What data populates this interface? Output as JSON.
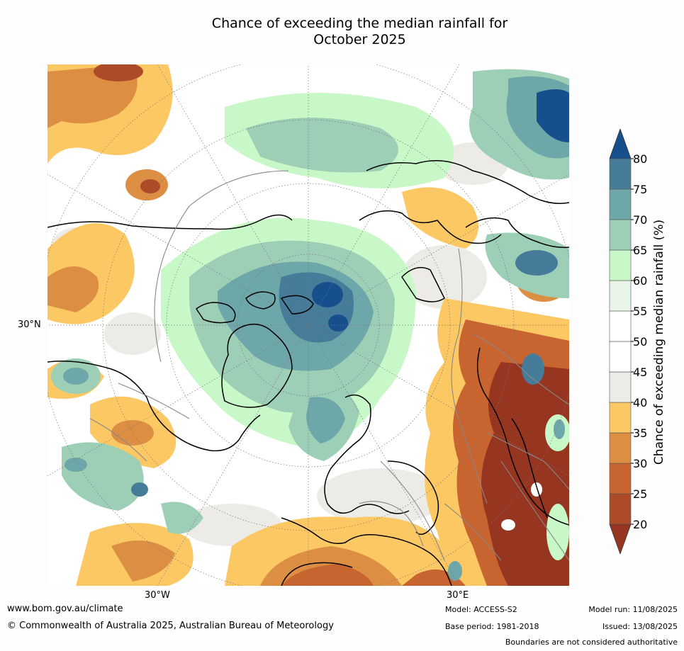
{
  "title_line1": "Chance of exceeding the median rainfall for",
  "title_line2": "October 2025",
  "map": {
    "latitude_label": "30°N",
    "longitude_labels": [
      "30°W",
      "30°E"
    ]
  },
  "colorbar": {
    "label": "Chance of exceeding median rainfall (%)",
    "ticks": [
      "20",
      "25",
      "30",
      "35",
      "40",
      "45",
      "50",
      "55",
      "60",
      "65",
      "70",
      "75",
      "80"
    ],
    "colors": [
      "#963520",
      "#ad4a28",
      "#c8642f",
      "#dc8e43",
      "#fbc864",
      "#ecebe6",
      "#ffffff",
      "#ffffff",
      "#e9f5e9",
      "#c9f8c8",
      "#9ccfb6",
      "#6ea7a9",
      "#467b99",
      "#174f8c"
    ]
  },
  "footer": {
    "website": "www.bom.gov.au/climate",
    "copyright": "© Commonwealth of Australia 2025, Australian Bureau of Meteorology",
    "model": "Model: ACCESS-S2",
    "base_period": "Base period: 1981-2018",
    "model_run": "Model run: 11/08/2025",
    "issued": "Issued: 13/08/2025",
    "disclaimer": "Boundaries are not considered authoritative"
  }
}
